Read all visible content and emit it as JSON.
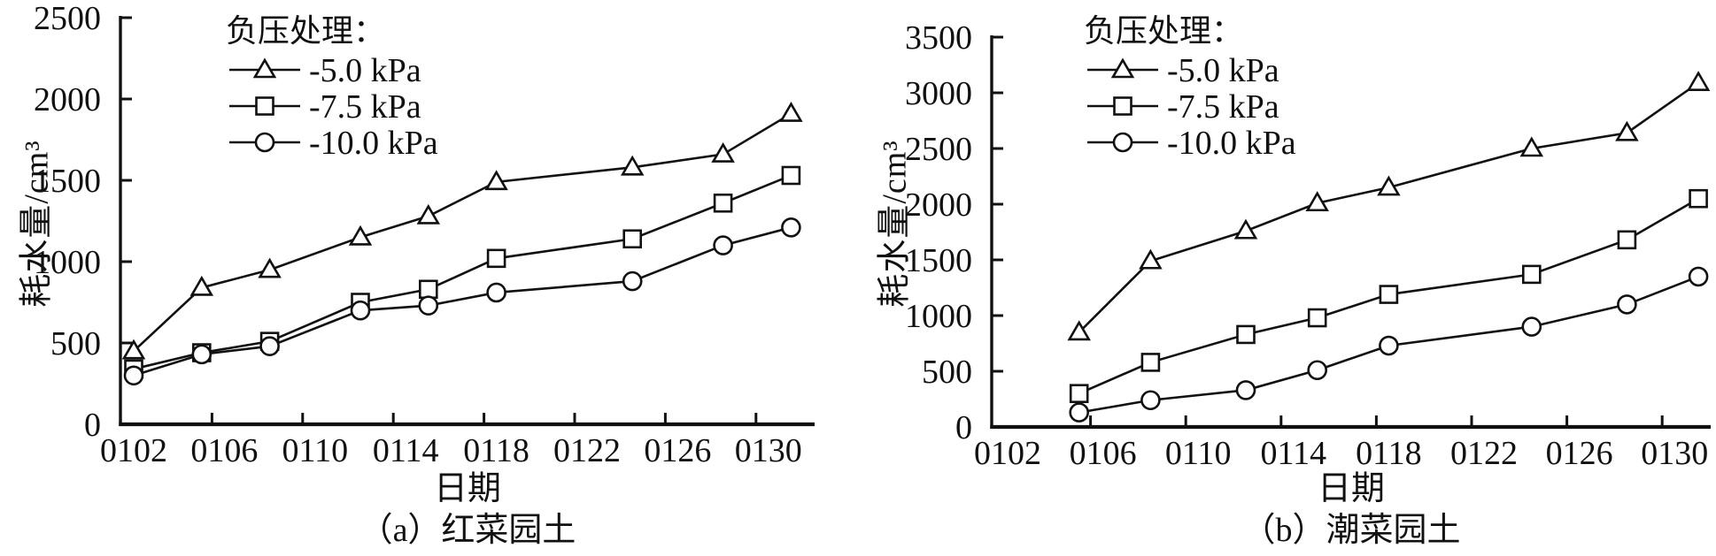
{
  "page": {
    "background": "#ffffff",
    "ink_color": "#111111"
  },
  "chart_data": [
    {
      "type": "line",
      "panel": "a",
      "caption": "（a）红菜园土",
      "xlabel": "日期",
      "ylabel": "耗水量/cm³",
      "legend_title": "负压处理：",
      "legend_position": "top-left-inside",
      "grid": false,
      "line_color": "#111111",
      "marker_fill": "#ffffff",
      "ylim": [
        0,
        2500
      ],
      "yticks": [
        0,
        500,
        1000,
        1500,
        2000,
        2500
      ],
      "xtick_labels": [
        "0102",
        "0106",
        "0110",
        "0114",
        "0118",
        "0122",
        "0126",
        "0130"
      ],
      "x": [
        "0102",
        "0105",
        "0108",
        "0112",
        "0115",
        "0118",
        "0124",
        "0128",
        "0131"
      ],
      "series": [
        {
          "name": "-5.0 kPa",
          "marker": "triangle",
          "values": [
            450,
            840,
            950,
            1150,
            1280,
            1490,
            1580,
            1660,
            1910
          ]
        },
        {
          "name": "-7.5 kPa",
          "marker": "square",
          "values": [
            340,
            440,
            510,
            750,
            830,
            1020,
            1140,
            1360,
            1530
          ]
        },
        {
          "name": "-10.0 kPa",
          "marker": "circle",
          "values": [
            300,
            430,
            480,
            700,
            730,
            810,
            880,
            1100,
            1210
          ]
        }
      ]
    },
    {
      "type": "line",
      "panel": "b",
      "caption": "（b）潮菜园土",
      "xlabel": "日期",
      "ylabel": "耗水量/cm³",
      "legend_title": "负压处理：",
      "legend_position": "top-left-inside",
      "grid": false,
      "line_color": "#111111",
      "marker_fill": "#ffffff",
      "ylim": [
        0,
        3500
      ],
      "yticks": [
        0,
        500,
        1000,
        1500,
        2000,
        2500,
        3000,
        3500
      ],
      "xtick_labels": [
        "0102",
        "0106",
        "0110",
        "0114",
        "0118",
        "0122",
        "0126",
        "0130"
      ],
      "x": [
        "0105",
        "0108",
        "0112",
        "0115",
        "0118",
        "0124",
        "0128",
        "0131"
      ],
      "series": [
        {
          "name": "-5.0 kPa",
          "marker": "triangle",
          "values": [
            850,
            1490,
            1760,
            2010,
            2150,
            2500,
            2640,
            3090
          ]
        },
        {
          "name": "-7.5 kPa",
          "marker": "square",
          "values": [
            300,
            580,
            830,
            980,
            1190,
            1370,
            1680,
            2050
          ]
        },
        {
          "name": "-10.0 kPa",
          "marker": "circle",
          "values": [
            130,
            240,
            330,
            510,
            730,
            900,
            1100,
            1350
          ]
        }
      ]
    }
  ]
}
